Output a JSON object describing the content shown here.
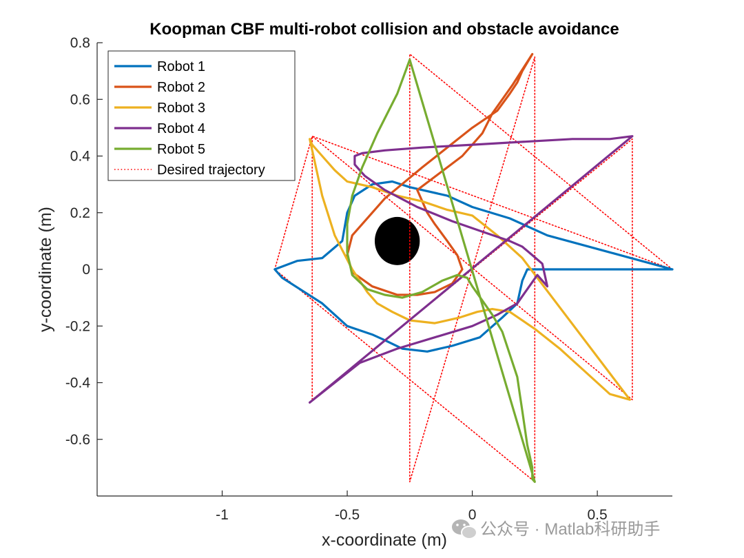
{
  "chart_data": {
    "type": "line",
    "title": "Koopman CBF multi-robot collision and obstacle avoidance",
    "xlabel": "x-coordinate (m)",
    "ylabel": "y-coordinate (m)",
    "xlim": [
      -1.5,
      0.8
    ],
    "ylim": [
      -0.8,
      0.8
    ],
    "xticks": [
      -1,
      -0.5,
      0,
      0.5
    ],
    "xtick_labels": [
      "-1",
      "-0.5",
      "0",
      "0.5"
    ],
    "yticks": [
      -0.6,
      -0.4,
      -0.2,
      0,
      0.2,
      0.4,
      0.6,
      0.8
    ],
    "ytick_labels": [
      "-0.6",
      "-0.4",
      "-0.2",
      "0",
      "0.2",
      "0.4",
      "0.6",
      "0.8"
    ],
    "grid": false,
    "legend_position": "top-left",
    "obstacle": {
      "shape": "ellipse",
      "center": [
        -0.3,
        0.1
      ],
      "radius_x": 0.09,
      "radius_y": 0.085,
      "color": "#000000"
    },
    "series": [
      {
        "name": "Robot 1",
        "color": "#0072BD",
        "style": "solid",
        "x": [
          0.8,
          0.55,
          0.3,
          0.15,
          0.0,
          -0.1,
          -0.25,
          -0.32,
          -0.4,
          -0.47,
          -0.5,
          -0.52,
          -0.6,
          -0.7,
          -0.79,
          -0.76,
          -0.6,
          -0.5,
          -0.4,
          -0.35,
          -0.28,
          -0.18,
          -0.08,
          0.03,
          0.12,
          0.18,
          0.2,
          0.22,
          0.3,
          0.55,
          0.8
        ],
        "y": [
          0.0,
          0.06,
          0.12,
          0.18,
          0.22,
          0.26,
          0.29,
          0.31,
          0.3,
          0.26,
          0.2,
          0.1,
          0.04,
          0.03,
          0.0,
          -0.03,
          -0.12,
          -0.2,
          -0.23,
          -0.25,
          -0.28,
          -0.29,
          -0.27,
          -0.24,
          -0.17,
          -0.12,
          -0.04,
          0.0,
          0.0,
          0.0,
          0.0
        ]
      },
      {
        "name": "Robot 2",
        "color": "#D95319",
        "style": "solid",
        "x": [
          0.24,
          0.16,
          0.08,
          0.04,
          -0.04,
          -0.16,
          -0.22,
          -0.2,
          -0.18,
          -0.15,
          -0.1,
          -0.06,
          -0.04,
          -0.08,
          -0.15,
          -0.22,
          -0.3,
          -0.4,
          -0.48,
          -0.5,
          -0.48,
          -0.4,
          -0.35,
          -0.2,
          0.0,
          0.1,
          0.15,
          0.18,
          0.2,
          0.22,
          0.24
        ],
        "y": [
          0.76,
          0.65,
          0.55,
          0.48,
          0.4,
          0.32,
          0.28,
          0.24,
          0.2,
          0.16,
          0.1,
          0.05,
          0.0,
          -0.05,
          -0.08,
          -0.09,
          -0.09,
          -0.06,
          -0.01,
          0.05,
          0.12,
          0.2,
          0.25,
          0.36,
          0.5,
          0.56,
          0.62,
          0.66,
          0.7,
          0.73,
          0.76
        ]
      },
      {
        "name": "Robot 3",
        "color": "#EDB120",
        "style": "solid",
        "x": [
          0.63,
          0.55,
          0.45,
          0.35,
          0.25,
          0.15,
          0.08,
          0.02,
          -0.05,
          -0.15,
          -0.25,
          -0.32,
          -0.38,
          -0.42,
          -0.48,
          -0.55,
          -0.6,
          -0.65,
          -0.64,
          -0.6,
          -0.55,
          -0.5,
          -0.45,
          -0.4,
          -0.3,
          -0.2,
          -0.1,
          0.0,
          0.1,
          0.2,
          0.63
        ],
        "y": [
          -0.46,
          -0.44,
          -0.36,
          -0.28,
          -0.21,
          -0.15,
          -0.14,
          -0.15,
          -0.17,
          -0.19,
          -0.18,
          -0.15,
          -0.12,
          -0.08,
          0.0,
          0.12,
          0.26,
          0.46,
          0.44,
          0.4,
          0.35,
          0.31,
          0.3,
          0.29,
          0.26,
          0.24,
          0.21,
          0.19,
          0.12,
          0.04,
          -0.46
        ]
      },
      {
        "name": "Robot 4",
        "color": "#7E2F8E",
        "style": "solid",
        "x": [
          -0.65,
          -0.55,
          -0.45,
          -0.3,
          -0.15,
          0.0,
          0.1,
          0.18,
          0.22,
          0.26,
          0.3,
          0.28,
          0.24,
          0.2,
          0.15,
          0.05,
          -0.08,
          -0.22,
          -0.35,
          -0.43,
          -0.47,
          -0.47,
          -0.44,
          -0.35,
          -0.2,
          0.0,
          0.2,
          0.4,
          0.55,
          0.64,
          -0.65
        ],
        "y": [
          -0.47,
          -0.4,
          -0.33,
          -0.28,
          -0.24,
          -0.2,
          -0.16,
          -0.12,
          -0.07,
          -0.02,
          -0.06,
          0.02,
          0.05,
          0.08,
          0.1,
          0.13,
          0.17,
          0.22,
          0.28,
          0.33,
          0.37,
          0.4,
          0.41,
          0.42,
          0.43,
          0.44,
          0.45,
          0.46,
          0.46,
          0.47,
          -0.47
        ]
      },
      {
        "name": "Robot 5",
        "color": "#77AC30",
        "style": "solid",
        "x": [
          -0.25,
          -0.3,
          -0.38,
          -0.44,
          -0.48,
          -0.5,
          -0.5,
          -0.48,
          -0.42,
          -0.35,
          -0.28,
          -0.2,
          -0.12,
          -0.06,
          -0.02,
          0.0,
          0.04,
          0.08,
          0.12,
          0.15,
          0.18,
          0.19,
          0.2,
          0.21,
          0.22,
          0.23,
          0.24,
          0.24,
          0.24,
          0.25,
          -0.25
        ],
        "y": [
          0.74,
          0.62,
          0.48,
          0.36,
          0.26,
          0.16,
          0.06,
          -0.02,
          -0.07,
          -0.09,
          -0.1,
          -0.08,
          -0.04,
          -0.02,
          -0.03,
          -0.06,
          -0.11,
          -0.16,
          -0.22,
          -0.3,
          -0.38,
          -0.44,
          -0.5,
          -0.56,
          -0.62,
          -0.66,
          -0.7,
          -0.73,
          -0.74,
          -0.75,
          0.74
        ]
      },
      {
        "name": "Desired trajectory",
        "color": "#FF0000",
        "style": "dotted",
        "x": [
          0.8,
          -0.25,
          -0.25,
          0.25,
          0.25,
          -0.79,
          -0.64,
          0.64,
          0.64,
          -0.64,
          -0.64,
          0.8
        ],
        "y": [
          0.0,
          0.76,
          -0.75,
          0.75,
          -0.75,
          0.0,
          0.47,
          -0.46,
          0.46,
          -0.46,
          0.47,
          0.0
        ]
      }
    ]
  },
  "watermark": "公众号 · Matlab科研助手",
  "watermark_icon": "wechat-icon"
}
